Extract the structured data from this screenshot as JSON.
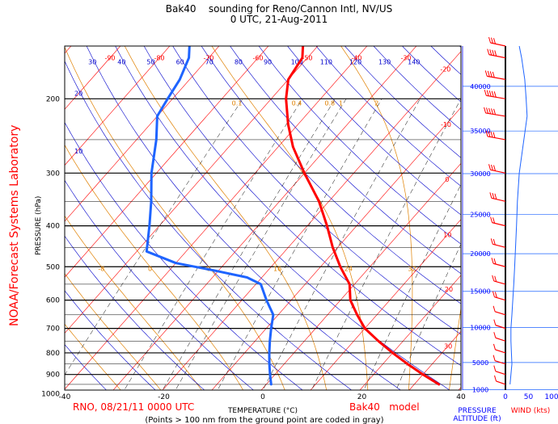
{
  "header": {
    "line1": "Bak40    sounding for Reno/Cannon Intl, NV/US",
    "line2": "0 UTC, 21-Aug-2011"
  },
  "side_label": "NOAA/Forecast Systems Laboratory",
  "footer": {
    "station_info": "RNO, 08/21/11 0000 UTC",
    "model_info": "Bak40   model",
    "note": "(Points > 100 nm from the ground point are coded in gray)"
  },
  "chart_data": {
    "type": "skew-t",
    "xlabel": "TEMPERATURE (°C)",
    "ylabel": "PRESSURE (hPa)",
    "x_ticks": [
      "-40",
      "-20",
      "0",
      "20",
      "40"
    ],
    "y_ticks": [
      "200",
      "300",
      "400",
      "500",
      "600",
      "700",
      "800",
      "900",
      "1000"
    ],
    "ylim_hpa": [
      150,
      1000
    ],
    "xlim_c": [
      -40,
      40
    ],
    "altitude_axis": {
      "label_line1": "PRESSURE",
      "label_line2": "ALTITUDE (ft)",
      "ticks": [
        "1000",
        "5000",
        "10000",
        "15000",
        "20000",
        "25000",
        "30000",
        "35000",
        "40000"
      ]
    },
    "wind_axis": {
      "label": "WIND (kts)",
      "ticks": [
        "0",
        "50",
        "100"
      ]
    },
    "isotherm_labels": [
      "-100",
      "-90",
      "-80",
      "-70",
      "-60",
      "-50",
      "-40",
      "-30",
      "-20",
      "-10",
      "0",
      "10",
      "20",
      "30",
      "40"
    ],
    "dry_adiabat_labels": [
      "140",
      "130",
      "120",
      "110",
      "100",
      "90",
      "80",
      "70",
      "60",
      "50",
      "40",
      "30",
      "20",
      "10"
    ],
    "moist_adiabat_labels": [
      "-16",
      "-8",
      "0",
      "8",
      "16",
      "24",
      "32"
    ],
    "mixing_ratio_labels": [
      "0.1",
      "0.4",
      "0.8",
      "1",
      "2"
    ],
    "temperature_profile": [
      {
        "p": 950,
        "t": 35
      },
      {
        "p": 900,
        "t": 30
      },
      {
        "p": 850,
        "t": 25
      },
      {
        "p": 800,
        "t": 20
      },
      {
        "p": 750,
        "t": 15
      },
      {
        "p": 700,
        "t": 10
      },
      {
        "p": 650,
        "t": 6
      },
      {
        "p": 600,
        "t": 2
      },
      {
        "p": 550,
        "t": -1
      },
      {
        "p": 500,
        "t": -6
      },
      {
        "p": 450,
        "t": -11
      },
      {
        "p": 400,
        "t": -16
      },
      {
        "p": 350,
        "t": -22
      },
      {
        "p": 300,
        "t": -30
      },
      {
        "p": 260,
        "t": -37
      },
      {
        "p": 230,
        "t": -42
      },
      {
        "p": 200,
        "t": -47
      },
      {
        "p": 180,
        "t": -50
      },
      {
        "p": 160,
        "t": -51
      },
      {
        "p": 150,
        "t": -53
      }
    ],
    "dewpoint_profile": [
      {
        "p": 950,
        "t": 1
      },
      {
        "p": 900,
        "t": -1
      },
      {
        "p": 850,
        "t": -3
      },
      {
        "p": 800,
        "t": -5
      },
      {
        "p": 750,
        "t": -7
      },
      {
        "p": 700,
        "t": -9
      },
      {
        "p": 650,
        "t": -11
      },
      {
        "p": 600,
        "t": -15
      },
      {
        "p": 550,
        "t": -19
      },
      {
        "p": 530,
        "t": -23
      },
      {
        "p": 510,
        "t": -31
      },
      {
        "p": 490,
        "t": -40
      },
      {
        "p": 460,
        "t": -48
      },
      {
        "p": 400,
        "t": -52
      },
      {
        "p": 350,
        "t": -56
      },
      {
        "p": 300,
        "t": -61
      },
      {
        "p": 250,
        "t": -66
      },
      {
        "p": 220,
        "t": -70
      },
      {
        "p": 200,
        "t": -71
      },
      {
        "p": 180,
        "t": -72
      },
      {
        "p": 160,
        "t": -74
      },
      {
        "p": 150,
        "t": -76
      }
    ],
    "wind_speed_profile": [
      {
        "p": 950,
        "kts": 10
      },
      {
        "p": 900,
        "kts": 12
      },
      {
        "p": 850,
        "kts": 14
      },
      {
        "p": 800,
        "kts": 13
      },
      {
        "p": 750,
        "kts": 12
      },
      {
        "p": 700,
        "kts": 12
      },
      {
        "p": 650,
        "kts": 14
      },
      {
        "p": 600,
        "kts": 16
      },
      {
        "p": 550,
        "kts": 18
      },
      {
        "p": 500,
        "kts": 20
      },
      {
        "p": 450,
        "kts": 22
      },
      {
        "p": 400,
        "kts": 24
      },
      {
        "p": 350,
        "kts": 26
      },
      {
        "p": 300,
        "kts": 30
      },
      {
        "p": 250,
        "kts": 40
      },
      {
        "p": 220,
        "kts": 47
      },
      {
        "p": 200,
        "kts": 45
      },
      {
        "p": 180,
        "kts": 42
      },
      {
        "p": 160,
        "kts": 35
      },
      {
        "p": 150,
        "kts": 30
      }
    ],
    "colors": {
      "temperature": "#ff0000",
      "dewpoint": "#1e64ff",
      "isobar": "#000000",
      "isotherm": "#ff0000",
      "dry_adiabat": "#0000cc",
      "moist_adiabat": "#e08000",
      "mixing_ratio": "#000000",
      "altitude_line": "#1e64ff",
      "wind_barb": "#ff0000",
      "wind_profile": "#1e64ff",
      "side_label": "#ff0000",
      "station_info": "#ff0000",
      "axis_label_blue": "#0000ff"
    }
  }
}
